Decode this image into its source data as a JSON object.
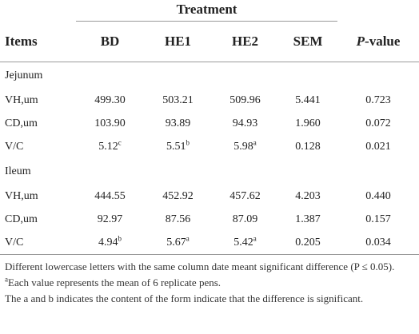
{
  "table": {
    "group_header": "Treatment",
    "columns": {
      "items": "Items",
      "bd": "BD",
      "he1": "HE1",
      "he2": "HE2",
      "sem": "SEM",
      "p_prefix": "P",
      "p_suffix": "-value"
    },
    "sections": [
      {
        "name": "Jejunum",
        "rows": [
          {
            "label": "VH,um",
            "bd": "499.30",
            "bd_sup": "",
            "he1": "503.21",
            "he1_sup": "",
            "he2": "509.96",
            "he2_sup": "",
            "sem": "5.441",
            "p": "0.723"
          },
          {
            "label": "CD,um",
            "bd": "103.90",
            "bd_sup": "",
            "he1": "93.89",
            "he1_sup": "",
            "he2": "94.93",
            "he2_sup": "",
            "sem": "1.960",
            "p": "0.072"
          },
          {
            "label": "V/C",
            "bd": "5.12",
            "bd_sup": "c",
            "he1": "5.51",
            "he1_sup": "b",
            "he2": "5.98",
            "he2_sup": "a",
            "sem": "0.128",
            "p": "0.021"
          }
        ]
      },
      {
        "name": "Ileum",
        "rows": [
          {
            "label": "VH,um",
            "bd": "444.55",
            "bd_sup": "",
            "he1": "452.92",
            "he1_sup": "",
            "he2": "457.62",
            "he2_sup": "",
            "sem": "4.203",
            "p": "0.440"
          },
          {
            "label": "CD,um",
            "bd": "92.97",
            "bd_sup": "",
            "he1": "87.56",
            "he1_sup": "",
            "he2": "87.09",
            "he2_sup": "",
            "sem": "1.387",
            "p": "0.157"
          },
          {
            "label": "V/C",
            "bd": "4.94",
            "bd_sup": "b",
            "he1": "5.67",
            "he1_sup": "a",
            "he2": "5.42",
            "he2_sup": "a",
            "sem": "0.205",
            "p": "0.034"
          }
        ]
      }
    ]
  },
  "notes": {
    "note1": "Different lowercase letters with the same column date meant significant difference (P ≤ 0.05).",
    "note2_sup": "a",
    "note2": "Each value represents the mean of 6 replicate pens.",
    "note3": "The a and b indicates the content of the form indicate that the difference is significant."
  }
}
